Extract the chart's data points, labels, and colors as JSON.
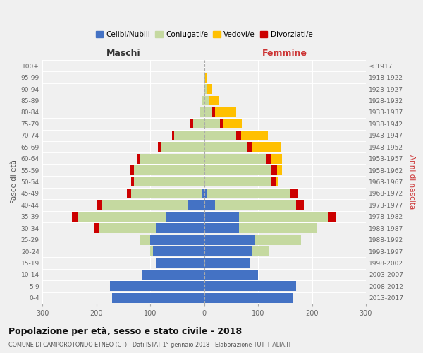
{
  "age_groups": [
    "0-4",
    "5-9",
    "10-14",
    "15-19",
    "20-24",
    "25-29",
    "30-34",
    "35-39",
    "40-44",
    "45-49",
    "50-54",
    "55-59",
    "60-64",
    "65-69",
    "70-74",
    "75-79",
    "80-84",
    "85-89",
    "90-94",
    "95-99",
    "100+"
  ],
  "birth_years": [
    "2013-2017",
    "2008-2012",
    "2003-2007",
    "1998-2002",
    "1993-1997",
    "1988-1992",
    "1983-1987",
    "1978-1982",
    "1973-1977",
    "1968-1972",
    "1963-1967",
    "1958-1962",
    "1953-1957",
    "1948-1952",
    "1943-1947",
    "1938-1942",
    "1933-1937",
    "1928-1932",
    "1923-1927",
    "1918-1922",
    "≤ 1917"
  ],
  "males": {
    "celibi": [
      170,
      175,
      115,
      90,
      95,
      100,
      90,
      70,
      30,
      5,
      0,
      0,
      0,
      0,
      0,
      0,
      0,
      0,
      0,
      0,
      0
    ],
    "coniugati": [
      0,
      0,
      0,
      0,
      5,
      20,
      105,
      165,
      160,
      130,
      130,
      130,
      120,
      80,
      55,
      20,
      8,
      3,
      0,
      0,
      0
    ],
    "vedovi": [
      0,
      0,
      0,
      0,
      0,
      0,
      0,
      0,
      0,
      0,
      0,
      0,
      0,
      0,
      0,
      0,
      0,
      0,
      0,
      0,
      0
    ],
    "divorziati": [
      0,
      0,
      0,
      0,
      0,
      0,
      8,
      10,
      10,
      8,
      5,
      8,
      5,
      5,
      5,
      5,
      0,
      0,
      0,
      0,
      0
    ]
  },
  "females": {
    "nubili": [
      165,
      170,
      100,
      85,
      90,
      95,
      65,
      65,
      20,
      5,
      0,
      0,
      0,
      0,
      0,
      0,
      0,
      0,
      0,
      0,
      0
    ],
    "coniugate": [
      0,
      0,
      0,
      0,
      30,
      85,
      145,
      165,
      150,
      155,
      125,
      125,
      115,
      80,
      60,
      30,
      15,
      8,
      5,
      2,
      0
    ],
    "vedove": [
      0,
      0,
      0,
      0,
      0,
      0,
      0,
      0,
      0,
      0,
      5,
      10,
      20,
      55,
      50,
      35,
      40,
      20,
      10,
      3,
      0
    ],
    "divorziate": [
      0,
      0,
      0,
      0,
      0,
      0,
      0,
      15,
      15,
      15,
      8,
      10,
      10,
      8,
      8,
      5,
      5,
      0,
      0,
      0,
      0
    ]
  },
  "colors": {
    "celibi_nubili": "#4472c4",
    "coniugati": "#c5d9a0",
    "vedovi": "#ffc000",
    "divorziati": "#cc0000"
  },
  "title": "Popolazione per età, sesso e stato civile - 2018",
  "subtitle": "COMUNE DI CAMPOROTONDO ETNEO (CT) - Dati ISTAT 1° gennaio 2018 - Elaborazione TUTTITALIA.IT",
  "xlabel_left": "Maschi",
  "xlabel_right": "Femmine",
  "ylabel_left": "Fasce di età",
  "ylabel_right": "Anni di nascita",
  "xlim": 300,
  "background_color": "#f0f0f0",
  "bar_height": 0.85
}
